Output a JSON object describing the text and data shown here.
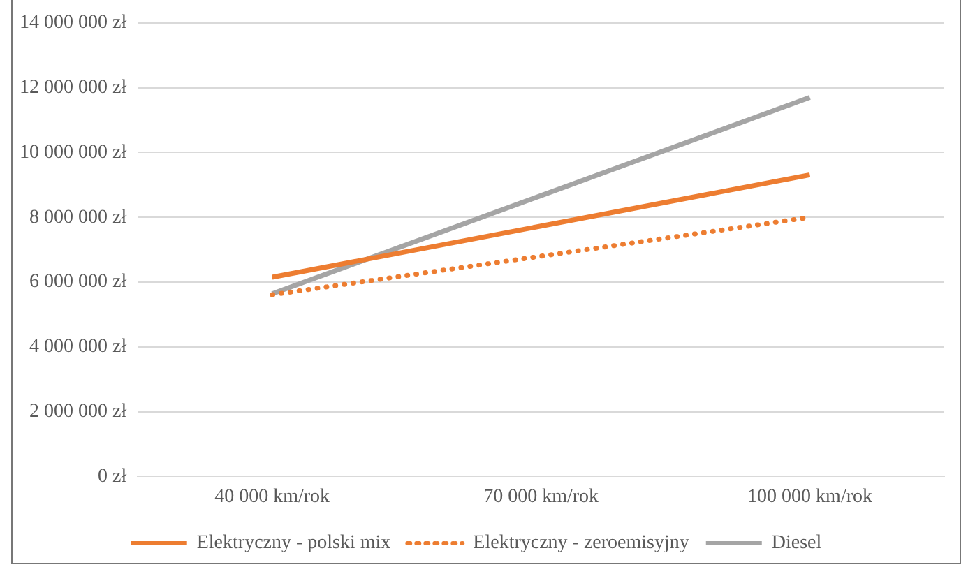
{
  "chart_data": {
    "type": "line",
    "categories": [
      "40 000 km/rok",
      "70 000 km/rok",
      "100 000 km/rok"
    ],
    "series": [
      {
        "name": "Elektryczny - polski mix",
        "color": "#ed7d31",
        "values": [
          6150000,
          7730000,
          9310000
        ],
        "line_style": "solid"
      },
      {
        "name": "Elektryczny - zeroemisyjny",
        "color": "#ed7d31",
        "values": [
          5610000,
          6800000,
          8000000
        ],
        "line_style": "dotted"
      },
      {
        "name": "Diesel",
        "color": "#a5a5a5",
        "values": [
          5640000,
          8670000,
          11700000
        ],
        "line_style": "solid"
      }
    ],
    "ylim": [
      0,
      14000000
    ],
    "yticks": [
      {
        "value": 0,
        "label": "0 zł"
      },
      {
        "value": 2000000,
        "label": "2 000 000 zł"
      },
      {
        "value": 4000000,
        "label": "4 000 000 zł"
      },
      {
        "value": 6000000,
        "label": "6 000 000 zł"
      },
      {
        "value": 8000000,
        "label": "8 000 000 zł"
      },
      {
        "value": 10000000,
        "label": "10 000 000 zł"
      },
      {
        "value": 12000000,
        "label": "12 000 000 zł"
      },
      {
        "value": 14000000,
        "label": "14 000 000 zł"
      }
    ],
    "grid": "y",
    "legend": "bottom",
    "marker": "none"
  }
}
